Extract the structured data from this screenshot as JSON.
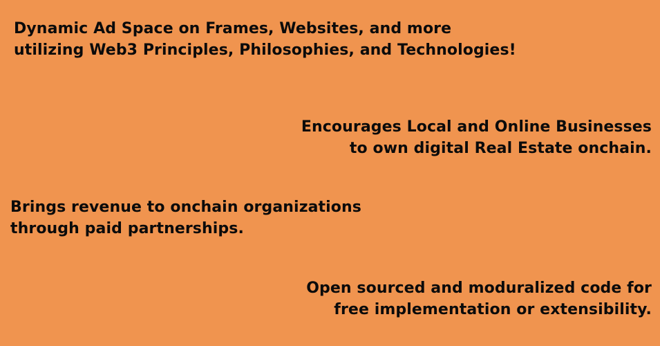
{
  "slide": {
    "background_color": "#F0944F",
    "text_color": "#0b0b0b",
    "blocks": [
      {
        "lines": [
          "Dynamic Ad Space on Frames, Websites, and more",
          "utilizing Web3 Principles, Philosophies, and Technologies!"
        ]
      },
      {
        "lines": [
          "Encourages Local and Online Businesses",
          "to own digital Real Estate onchain."
        ]
      },
      {
        "lines": [
          "Brings revenue to onchain organizations",
          "through paid partnerships."
        ]
      },
      {
        "lines": [
          "Open sourced and moduralized code for",
          "free implementation or extensibility."
        ]
      }
    ]
  }
}
